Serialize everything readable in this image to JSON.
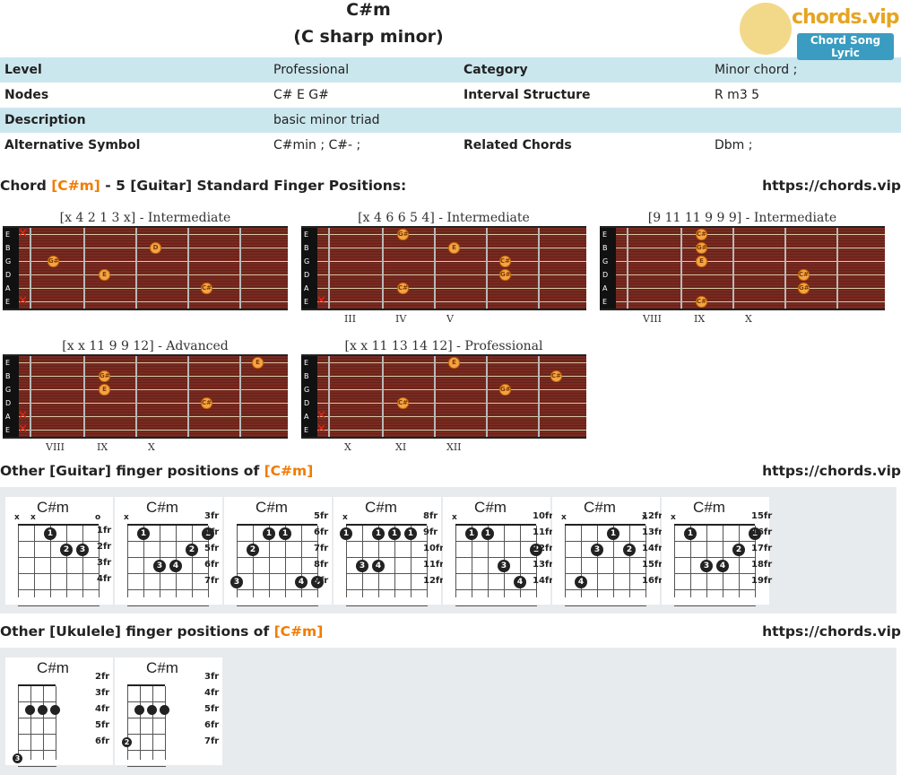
{
  "chord": {
    "title": "C#m",
    "subtitle": "(C sharp minor)"
  },
  "logo": {
    "brand": "chords.vip",
    "tagline": "Chord Song Lyric"
  },
  "info": {
    "level_label": "Level",
    "level": "Professional",
    "category_label": "Category",
    "category": "Minor chord ;",
    "nodes_label": "Nodes",
    "nodes": "C# E G#",
    "interval_label": "Interval Structure",
    "interval": "R m3 5",
    "desc_label": "Description",
    "desc": "basic minor triad",
    "alt_label": "Alternative Symbol",
    "alt": "C#min ; C#- ;",
    "related_label": "Related Chords",
    "related": "Dbm ;"
  },
  "section1": {
    "pre": "Chord ",
    "hl": "[C#m]",
    "post": " - 5 [Guitar] Standard Finger Positions:",
    "url": "https://chords.vip"
  },
  "section2": {
    "pre": "Other [Guitar] finger positions of ",
    "hl": "[C#m]",
    "url": "https://chords.vip"
  },
  "section3": {
    "pre": "Other [Ukulele] finger positions of ",
    "hl": "[C#m]",
    "url": "https://chords.vip"
  },
  "string_names": [
    "E",
    "B",
    "G",
    "D",
    "A",
    "E"
  ],
  "fretboards": [
    {
      "caption": "[x 4 2 1 3 x] - Intermediate",
      "roman": [
        "",
        ""
      ],
      "dots": [
        [
          "D",
          1,
          2
        ],
        [
          "G#",
          2,
          0
        ],
        [
          "E",
          3,
          1
        ],
        [
          "C#",
          4,
          3
        ]
      ],
      "mutes": [
        0,
        5
      ]
    },
    {
      "caption": "[x 4 6 6 5 4] - Intermediate",
      "roman": [
        "III",
        "IV",
        "V"
      ],
      "dots": [
        [
          "G#",
          0,
          1
        ],
        [
          "E",
          1,
          2
        ],
        [
          "C#",
          2,
          3
        ],
        [
          "G#",
          3,
          3
        ],
        [
          "C#",
          4,
          1
        ]
      ],
      "mutes": [
        5
      ]
    },
    {
      "caption": "[9 11 11 9 9 9] - Intermediate",
      "roman": [
        "VIII",
        "IX",
        "X"
      ],
      "dots": [
        [
          "C#",
          0,
          1
        ],
        [
          "G#",
          1,
          1
        ],
        [
          "E",
          2,
          1
        ],
        [
          "C#",
          3,
          3
        ],
        [
          "G#",
          4,
          3
        ],
        [
          "C#",
          5,
          1
        ]
      ],
      "mutes": []
    },
    {
      "caption": "[x x 11 9 9 12] - Advanced",
      "roman": [
        "VIII",
        "IX",
        "X"
      ],
      "dots": [
        [
          "E",
          0,
          4
        ],
        [
          "G#",
          1,
          1
        ],
        [
          "E",
          2,
          1
        ],
        [
          "C#",
          3,
          3
        ]
      ],
      "mutes": [
        4,
        5
      ]
    },
    {
      "caption": "[x x 11 13 14 12] - Professional",
      "roman": [
        "X",
        "XI",
        "XII"
      ],
      "dots": [
        [
          "E",
          0,
          2
        ],
        [
          "C#",
          1,
          4
        ],
        [
          "G#",
          2,
          3
        ],
        [
          "C#",
          3,
          1
        ]
      ],
      "mutes": [
        4,
        5
      ]
    }
  ],
  "guitar_cards": [
    {
      "name": "C#m",
      "frets": [
        "1fr",
        "2fr",
        "3fr",
        "4fr"
      ]
    },
    {
      "name": "C#m",
      "frets": [
        "3fr",
        "4fr",
        "5fr",
        "6fr",
        "7fr"
      ]
    },
    {
      "name": "C#m",
      "frets": [
        "5fr",
        "6fr",
        "7fr",
        "8fr",
        "9fr"
      ]
    },
    {
      "name": "C#m",
      "frets": [
        "8fr",
        "9fr",
        "10fr",
        "11fr",
        "12fr"
      ]
    },
    {
      "name": "C#m",
      "frets": [
        "10fr",
        "11fr",
        "12fr",
        "13fr",
        "14fr"
      ]
    },
    {
      "name": "C#m",
      "frets": [
        "12fr",
        "13fr",
        "14fr",
        "15fr",
        "16fr"
      ]
    },
    {
      "name": "C#m",
      "frets": [
        "15fr",
        "16fr",
        "17fr",
        "18fr",
        "19fr"
      ]
    }
  ],
  "uke_cards": [
    {
      "name": "C#m",
      "frets": [
        "2fr",
        "3fr",
        "4fr",
        "5fr",
        "6fr"
      ]
    },
    {
      "name": "C#m",
      "frets": [
        "3fr",
        "4fr",
        "5fr",
        "6fr",
        "7fr"
      ]
    }
  ]
}
